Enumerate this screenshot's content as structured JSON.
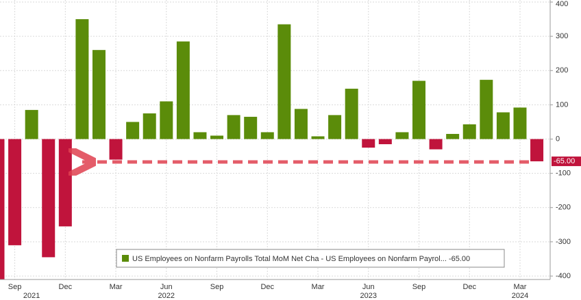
{
  "chart_data": {
    "type": "bar",
    "categories": [
      null,
      "Sep",
      null,
      null,
      "Dec",
      null,
      null,
      "Mar",
      null,
      null,
      "Jun",
      null,
      null,
      "Sep",
      null,
      null,
      "Dec",
      null,
      null,
      "Mar",
      null,
      null,
      "Jun",
      null,
      null,
      "Sep",
      null,
      null,
      "Dec",
      null,
      null,
      "Mar",
      null
    ],
    "year_labels": [
      "2021",
      "2022",
      "2023",
      "2024"
    ],
    "values": [
      -430,
      -310,
      85,
      -345,
      -255,
      350,
      260,
      -60,
      50,
      75,
      110,
      285,
      20,
      10,
      70,
      65,
      20,
      335,
      88,
      8,
      70,
      147,
      -25,
      -15,
      20,
      170,
      -30,
      15,
      43,
      173,
      78,
      92,
      -65
    ],
    "positive_color": "#5b8c0a",
    "negative_color": "#c0143c",
    "ylim": [
      -410,
      400
    ],
    "yticks": [
      400,
      300,
      200,
      100,
      0,
      -100,
      -200,
      -300,
      -400
    ],
    "grid": true,
    "legend": "US Employees on Nonfarm Payrolls Total MoM Net Cha - US Employees on Nonfarm Payrol... -65.00",
    "last_value_label": "-65.00"
  }
}
